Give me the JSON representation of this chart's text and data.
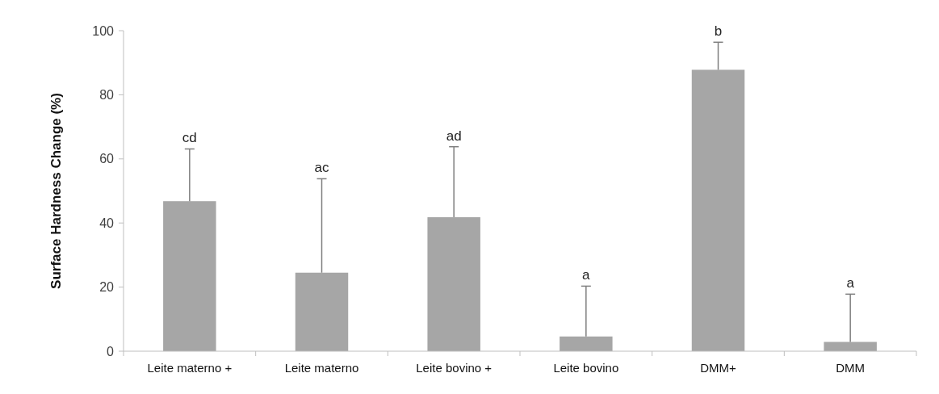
{
  "chart_data": {
    "type": "bar",
    "ylabel": "Surface Hardness Change (%)",
    "categories": [
      "Leite materno +",
      "Leite materno",
      "Leite bovino +",
      "Leite bovino",
      "DMM+",
      "DMM"
    ],
    "values": [
      46.8,
      24.5,
      41.8,
      4.6,
      87.8,
      2.9
    ],
    "errors": [
      [
        46.8,
        63.1
      ],
      [
        24.5,
        53.8
      ],
      [
        41.8,
        63.8
      ],
      [
        4.6,
        20.3
      ],
      [
        87.8,
        96.4
      ],
      [
        2.9,
        17.8
      ]
    ],
    "color": "#a6a6a6",
    "ylim": [
      0,
      100
    ],
    "yticks": [
      0,
      20,
      40,
      60,
      80,
      100
    ],
    "grid": false,
    "annotations": [
      {
        "text": "cd",
        "x": "Leite materno +",
        "y": 63.1
      },
      {
        "text": "ac",
        "x": "Leite materno",
        "y": 53.8
      },
      {
        "text": "ad",
        "x": "Leite bovino +",
        "y": 63.8
      },
      {
        "text": "a",
        "x": "Leite bovino",
        "y": 20.3
      },
      {
        "text": "b",
        "x": "DMM+",
        "y": 96.4
      },
      {
        "text": "a",
        "x": "DMM",
        "y": 17.8
      }
    ]
  }
}
